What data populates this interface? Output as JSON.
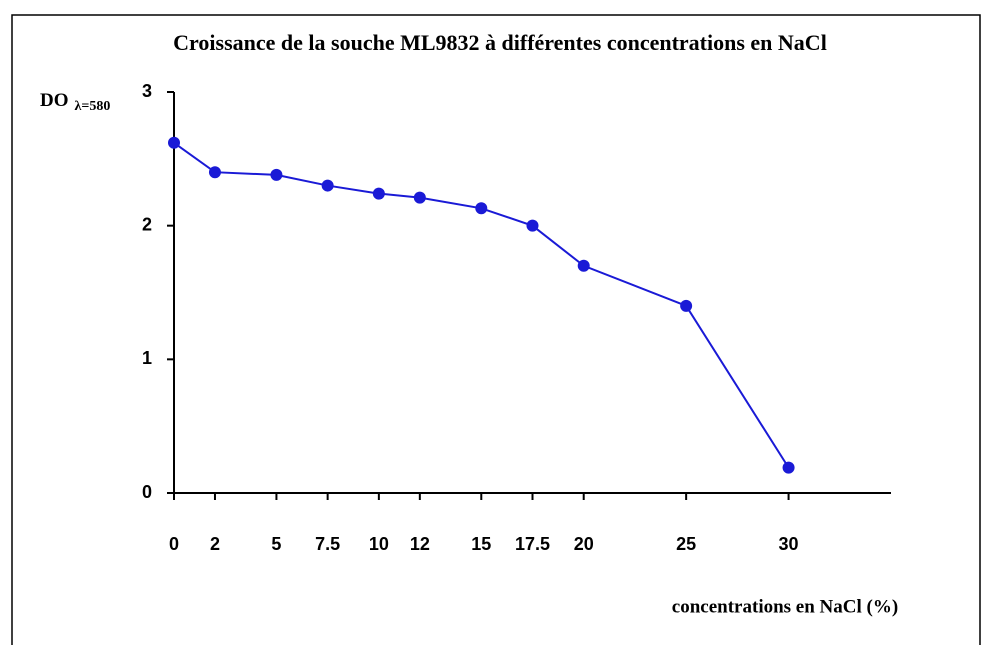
{
  "chart_data": {
    "type": "line",
    "title": "Croissance de la souche ML9832 à différentes concentrations en NaCl",
    "y_label": "DO",
    "y_label_sub": "λ=580",
    "x_label": "concentrations en NaCl (%)",
    "x": [
      0,
      2,
      5,
      7.5,
      10,
      12,
      15,
      17.5,
      20,
      25,
      30
    ],
    "series": [
      {
        "name": "ML9832",
        "color": "#1a1ad6",
        "values": [
          2.62,
          2.4,
          2.38,
          2.3,
          2.24,
          2.21,
          2.13,
          2.0,
          1.7,
          1.4,
          0.19
        ]
      }
    ],
    "xlim": [
      0,
      35
    ],
    "xticks": [
      0,
      2,
      5,
      7.5,
      10,
      12,
      15,
      17.5,
      20,
      25,
      30
    ],
    "ylim": [
      0,
      3
    ],
    "yticks": [
      0,
      1,
      2,
      3
    ],
    "grid": false,
    "legend": false
  }
}
